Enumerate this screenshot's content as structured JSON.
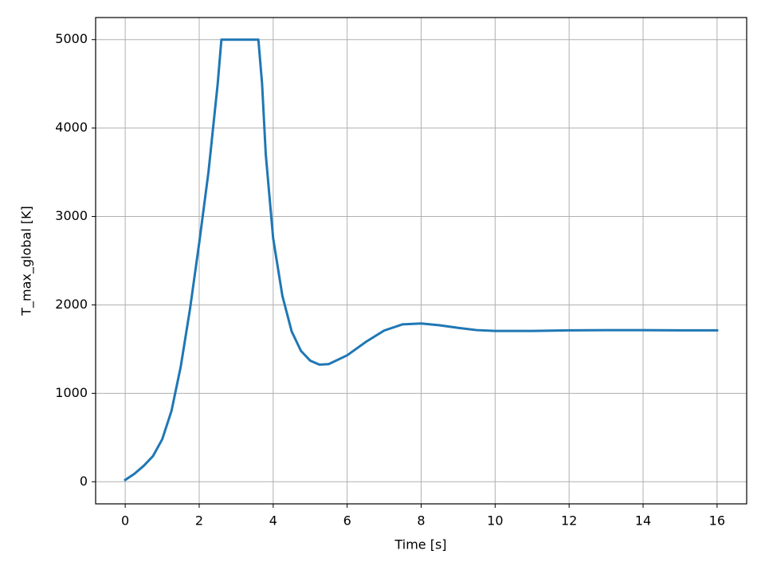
{
  "chart_data": {
    "type": "line",
    "x_label": "Time [s]",
    "y_label": "T_max_global [K]",
    "x": [
      0,
      0.25,
      0.5,
      0.75,
      1.0,
      1.25,
      1.5,
      1.75,
      2.0,
      2.25,
      2.5,
      2.6,
      3.0,
      3.5,
      3.6,
      3.7,
      3.8,
      4.0,
      4.25,
      4.5,
      4.75,
      5.0,
      5.25,
      5.5,
      6.0,
      6.5,
      7.0,
      7.5,
      8.0,
      8.5,
      9.0,
      9.5,
      10.0,
      11.0,
      12.0,
      13.0,
      14.0,
      15.0,
      16.0
    ],
    "series": [
      {
        "color": "#1f77b4",
        "values": [
          20,
          90,
          180,
          290,
          480,
          800,
          1300,
          1950,
          2700,
          3500,
          4500,
          5000,
          5000,
          5000,
          5000,
          4500,
          3700,
          2750,
          2100,
          1700,
          1480,
          1370,
          1325,
          1330,
          1430,
          1580,
          1710,
          1780,
          1790,
          1770,
          1740,
          1715,
          1705,
          1705,
          1712,
          1715,
          1715,
          1712,
          1712
        ]
      }
    ],
    "xlim": [
      -0.8,
      16.8
    ],
    "ylim": [
      -250,
      5250
    ],
    "xticks": [
      0,
      2,
      4,
      6,
      8,
      10,
      12,
      14,
      16
    ],
    "yticks": [
      0,
      1000,
      2000,
      3000,
      4000,
      5000
    ],
    "grid": true
  }
}
